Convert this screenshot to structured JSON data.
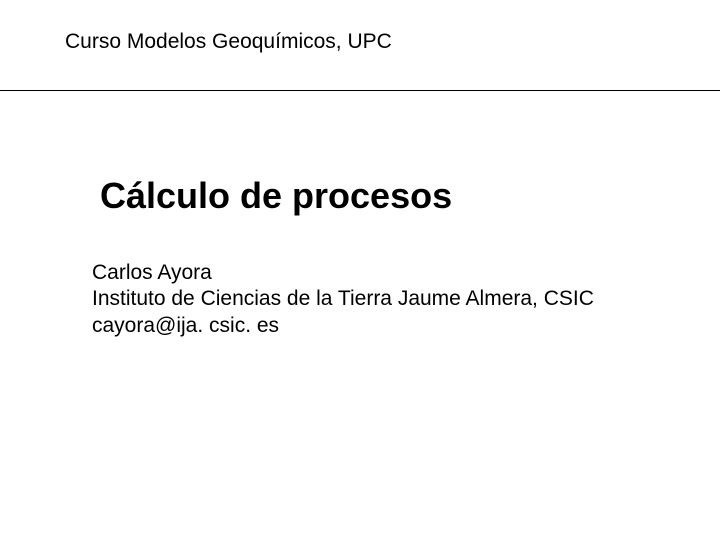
{
  "header": {
    "course_text": "Curso Modelos Geoquímicos, UPC"
  },
  "main": {
    "title": "Cálculo de procesos",
    "author_name": "Carlos Ayora",
    "affiliation": "Instituto de Ciencias de la Tierra Jaume Almera, CSIC",
    "email": "cayora@ija. csic. es"
  },
  "styling": {
    "background_color": "#ffffff",
    "text_color": "#000000",
    "divider_color": "#000000",
    "header_fontsize": 21,
    "title_fontsize": 36,
    "body_fontsize": 21,
    "title_fontweight": "bold",
    "font_family": "Arial"
  }
}
